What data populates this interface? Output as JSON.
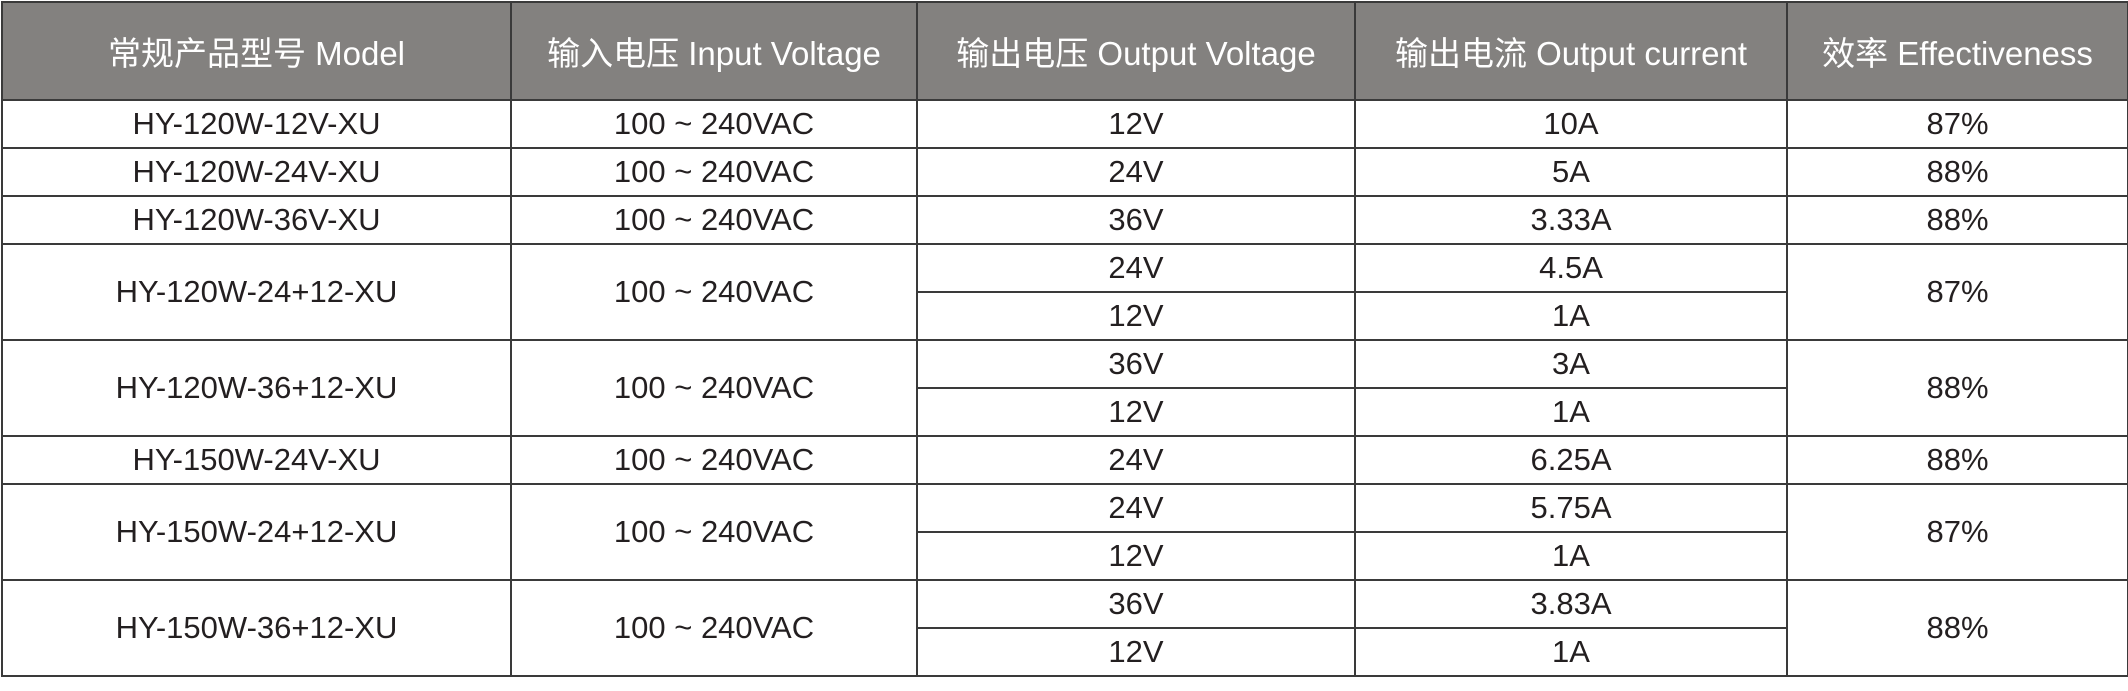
{
  "header": {
    "columns": [
      "常规产品型号 Model",
      "输入电压 Input Voltage",
      "输出电压 Output Voltage",
      "输出电流 Output current",
      "效率 Effectiveness"
    ]
  },
  "colors": {
    "header_bg": "#83817f",
    "header_text": "#ffffff",
    "border": "#3a3a3a"
  },
  "rows": [
    {
      "model": "HY-120W-12V-XU",
      "input": "100 ~ 240VAC",
      "outputs": [
        {
          "voltage": "12V",
          "current": "10A"
        }
      ],
      "efficiency": "87%"
    },
    {
      "model": "HY-120W-24V-XU",
      "input": "100 ~ 240VAC",
      "outputs": [
        {
          "voltage": "24V",
          "current": "5A"
        }
      ],
      "efficiency": "88%"
    },
    {
      "model": "HY-120W-36V-XU",
      "input": "100 ~ 240VAC",
      "outputs": [
        {
          "voltage": "36V",
          "current": "3.33A"
        }
      ],
      "efficiency": "88%"
    },
    {
      "model": "HY-120W-24+12-XU",
      "input": "100 ~ 240VAC",
      "outputs": [
        {
          "voltage": "24V",
          "current": "4.5A"
        },
        {
          "voltage": "12V",
          "current": "1A"
        }
      ],
      "efficiency": "87%"
    },
    {
      "model": "HY-120W-36+12-XU",
      "input": "100 ~ 240VAC",
      "outputs": [
        {
          "voltage": "36V",
          "current": "3A"
        },
        {
          "voltage": "12V",
          "current": "1A"
        }
      ],
      "efficiency": "88%"
    },
    {
      "model": "HY-150W-24V-XU",
      "input": "100 ~ 240VAC",
      "outputs": [
        {
          "voltage": "24V",
          "current": "6.25A"
        }
      ],
      "efficiency": "88%"
    },
    {
      "model": "HY-150W-24+12-XU",
      "input": "100 ~ 240VAC",
      "outputs": [
        {
          "voltage": "24V",
          "current": "5.75A"
        },
        {
          "voltage": "12V",
          "current": "1A"
        }
      ],
      "efficiency": "87%"
    },
    {
      "model": "HY-150W-36+12-XU",
      "input": "100 ~ 240VAC",
      "outputs": [
        {
          "voltage": "36V",
          "current": "3.83A"
        },
        {
          "voltage": "12V",
          "current": "1A"
        }
      ],
      "efficiency": "88%"
    }
  ]
}
